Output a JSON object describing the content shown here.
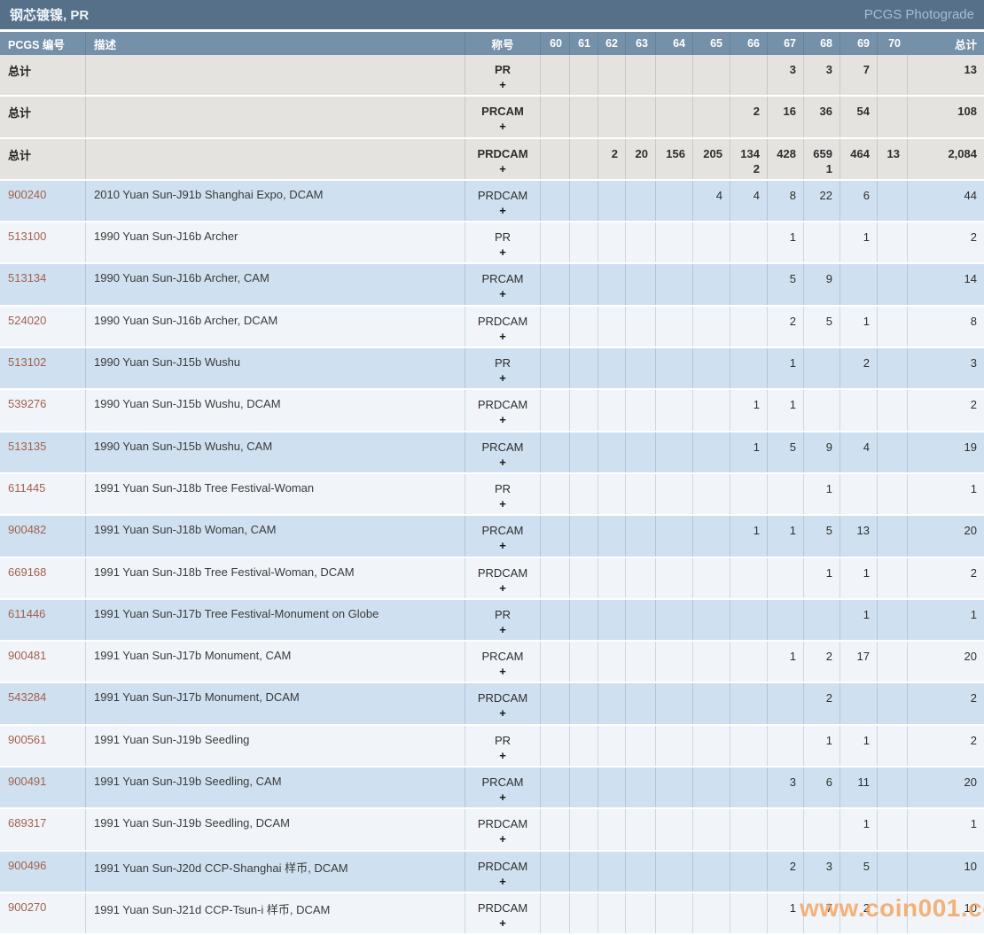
{
  "title": "钢芯镀镍, PR",
  "subtitle": "PCGS Photograde",
  "watermark": "www.coin001.com",
  "plus_label": "+",
  "columns": {
    "pcgs_number": "PCGS 编号",
    "description": "描述",
    "designation": "称号",
    "grades": [
      "60",
      "61",
      "62",
      "63",
      "64",
      "65",
      "66",
      "67",
      "68",
      "69",
      "70"
    ],
    "total": "总计"
  },
  "colors": {
    "titlebar": "#56708a",
    "header": "#7590a9",
    "summary_row": "#e4e3e0",
    "row_blue": "#cfe1f0",
    "row_white": "#f1f5f9",
    "pcgs_number_link": "#a2604d",
    "watermark": "#f49e56"
  },
  "rows": [
    {
      "type": "summary",
      "number_label": "总计",
      "description": "",
      "designation": "PR",
      "values": {
        "67": "3",
        "68": "3",
        "69": "7"
      },
      "plus_values": {},
      "total": "13"
    },
    {
      "type": "summary",
      "number_label": "总计",
      "description": "",
      "designation": "PRCAM",
      "values": {
        "66": "2",
        "67": "16",
        "68": "36",
        "69": "54"
      },
      "plus_values": {},
      "total": "108"
    },
    {
      "type": "summary",
      "number_label": "总计",
      "description": "",
      "designation": "PRDCAM",
      "values": {
        "62": "2",
        "63": "20",
        "64": "156",
        "65": "205",
        "66": "134",
        "67": "428",
        "68": "659",
        "69": "464",
        "70": "13"
      },
      "plus_values": {
        "66": "2",
        "68": "1"
      },
      "total": "2,084"
    },
    {
      "type": "data",
      "number": "900240",
      "description": "2010 Yuan Sun-J91b Shanghai Expo, DCAM",
      "designation": "PRDCAM",
      "values": {
        "65": "4",
        "66": "4",
        "67": "8",
        "68": "22",
        "69": "6"
      },
      "plus_values": {},
      "total": "44"
    },
    {
      "type": "data",
      "number": "513100",
      "description": "1990 Yuan Sun-J16b Archer",
      "designation": "PR",
      "values": {
        "67": "1",
        "69": "1"
      },
      "plus_values": {},
      "total": "2"
    },
    {
      "type": "data",
      "number": "513134",
      "description": "1990 Yuan Sun-J16b Archer, CAM",
      "designation": "PRCAM",
      "values": {
        "67": "5",
        "68": "9"
      },
      "plus_values": {},
      "total": "14"
    },
    {
      "type": "data",
      "number": "524020",
      "description": "1990 Yuan Sun-J16b Archer, DCAM",
      "designation": "PRDCAM",
      "values": {
        "67": "2",
        "68": "5",
        "69": "1"
      },
      "plus_values": {},
      "total": "8"
    },
    {
      "type": "data",
      "number": "513102",
      "description": "1990 Yuan Sun-J15b Wushu",
      "designation": "PR",
      "values": {
        "67": "1",
        "69": "2"
      },
      "plus_values": {},
      "total": "3"
    },
    {
      "type": "data",
      "number": "539276",
      "description": "1990 Yuan Sun-J15b Wushu, DCAM",
      "designation": "PRDCAM",
      "values": {
        "66": "1",
        "67": "1"
      },
      "plus_values": {},
      "total": "2"
    },
    {
      "type": "data",
      "number": "513135",
      "description": "1990 Yuan Sun-J15b Wushu, CAM",
      "designation": "PRCAM",
      "values": {
        "66": "1",
        "67": "5",
        "68": "9",
        "69": "4"
      },
      "plus_values": {},
      "total": "19"
    },
    {
      "type": "data",
      "number": "611445",
      "description": "1991 Yuan Sun-J18b Tree Festival-Woman",
      "designation": "PR",
      "values": {
        "68": "1"
      },
      "plus_values": {},
      "total": "1"
    },
    {
      "type": "data",
      "number": "900482",
      "description": "1991 Yuan Sun-J18b Woman, CAM",
      "designation": "PRCAM",
      "values": {
        "66": "1",
        "67": "1",
        "68": "5",
        "69": "13"
      },
      "plus_values": {},
      "total": "20"
    },
    {
      "type": "data",
      "number": "669168",
      "description": "1991 Yuan Sun-J18b Tree Festival-Woman, DCAM",
      "designation": "PRDCAM",
      "values": {
        "68": "1",
        "69": "1"
      },
      "plus_values": {},
      "total": "2"
    },
    {
      "type": "data",
      "number": "611446",
      "description": "1991 Yuan Sun-J17b Tree Festival-Monument on Globe",
      "designation": "PR",
      "values": {
        "69": "1"
      },
      "plus_values": {},
      "total": "1"
    },
    {
      "type": "data",
      "number": "900481",
      "description": "1991 Yuan Sun-J17b Monument, CAM",
      "designation": "PRCAM",
      "values": {
        "67": "1",
        "68": "2",
        "69": "17"
      },
      "plus_values": {},
      "total": "20"
    },
    {
      "type": "data",
      "number": "543284",
      "description": "1991 Yuan Sun-J17b Monument, DCAM",
      "designation": "PRDCAM",
      "values": {
        "68": "2"
      },
      "plus_values": {},
      "total": "2"
    },
    {
      "type": "data",
      "number": "900561",
      "description": "1991 Yuan Sun-J19b Seedling",
      "designation": "PR",
      "values": {
        "68": "1",
        "69": "1"
      },
      "plus_values": {},
      "total": "2"
    },
    {
      "type": "data",
      "number": "900491",
      "description": "1991 Yuan Sun-J19b Seedling, CAM",
      "designation": "PRCAM",
      "values": {
        "67": "3",
        "68": "6",
        "69": "11"
      },
      "plus_values": {},
      "total": "20"
    },
    {
      "type": "data",
      "number": "689317",
      "description": "1991 Yuan Sun-J19b Seedling, DCAM",
      "designation": "PRDCAM",
      "values": {
        "69": "1"
      },
      "plus_values": {},
      "total": "1"
    },
    {
      "type": "data",
      "number": "900496",
      "description": "1991 Yuan Sun-J20d CCP-Shanghai 样币, DCAM",
      "designation": "PRDCAM",
      "values": {
        "67": "2",
        "68": "3",
        "69": "5"
      },
      "plus_values": {},
      "total": "10"
    },
    {
      "type": "data",
      "number": "900270",
      "description": "1991 Yuan Sun-J21d CCP-Tsun-i 样币, DCAM",
      "designation": "PRDCAM",
      "values": {
        "67": "1",
        "68": "7",
        "69": "2"
      },
      "plus_values": {},
      "total": "10"
    }
  ]
}
